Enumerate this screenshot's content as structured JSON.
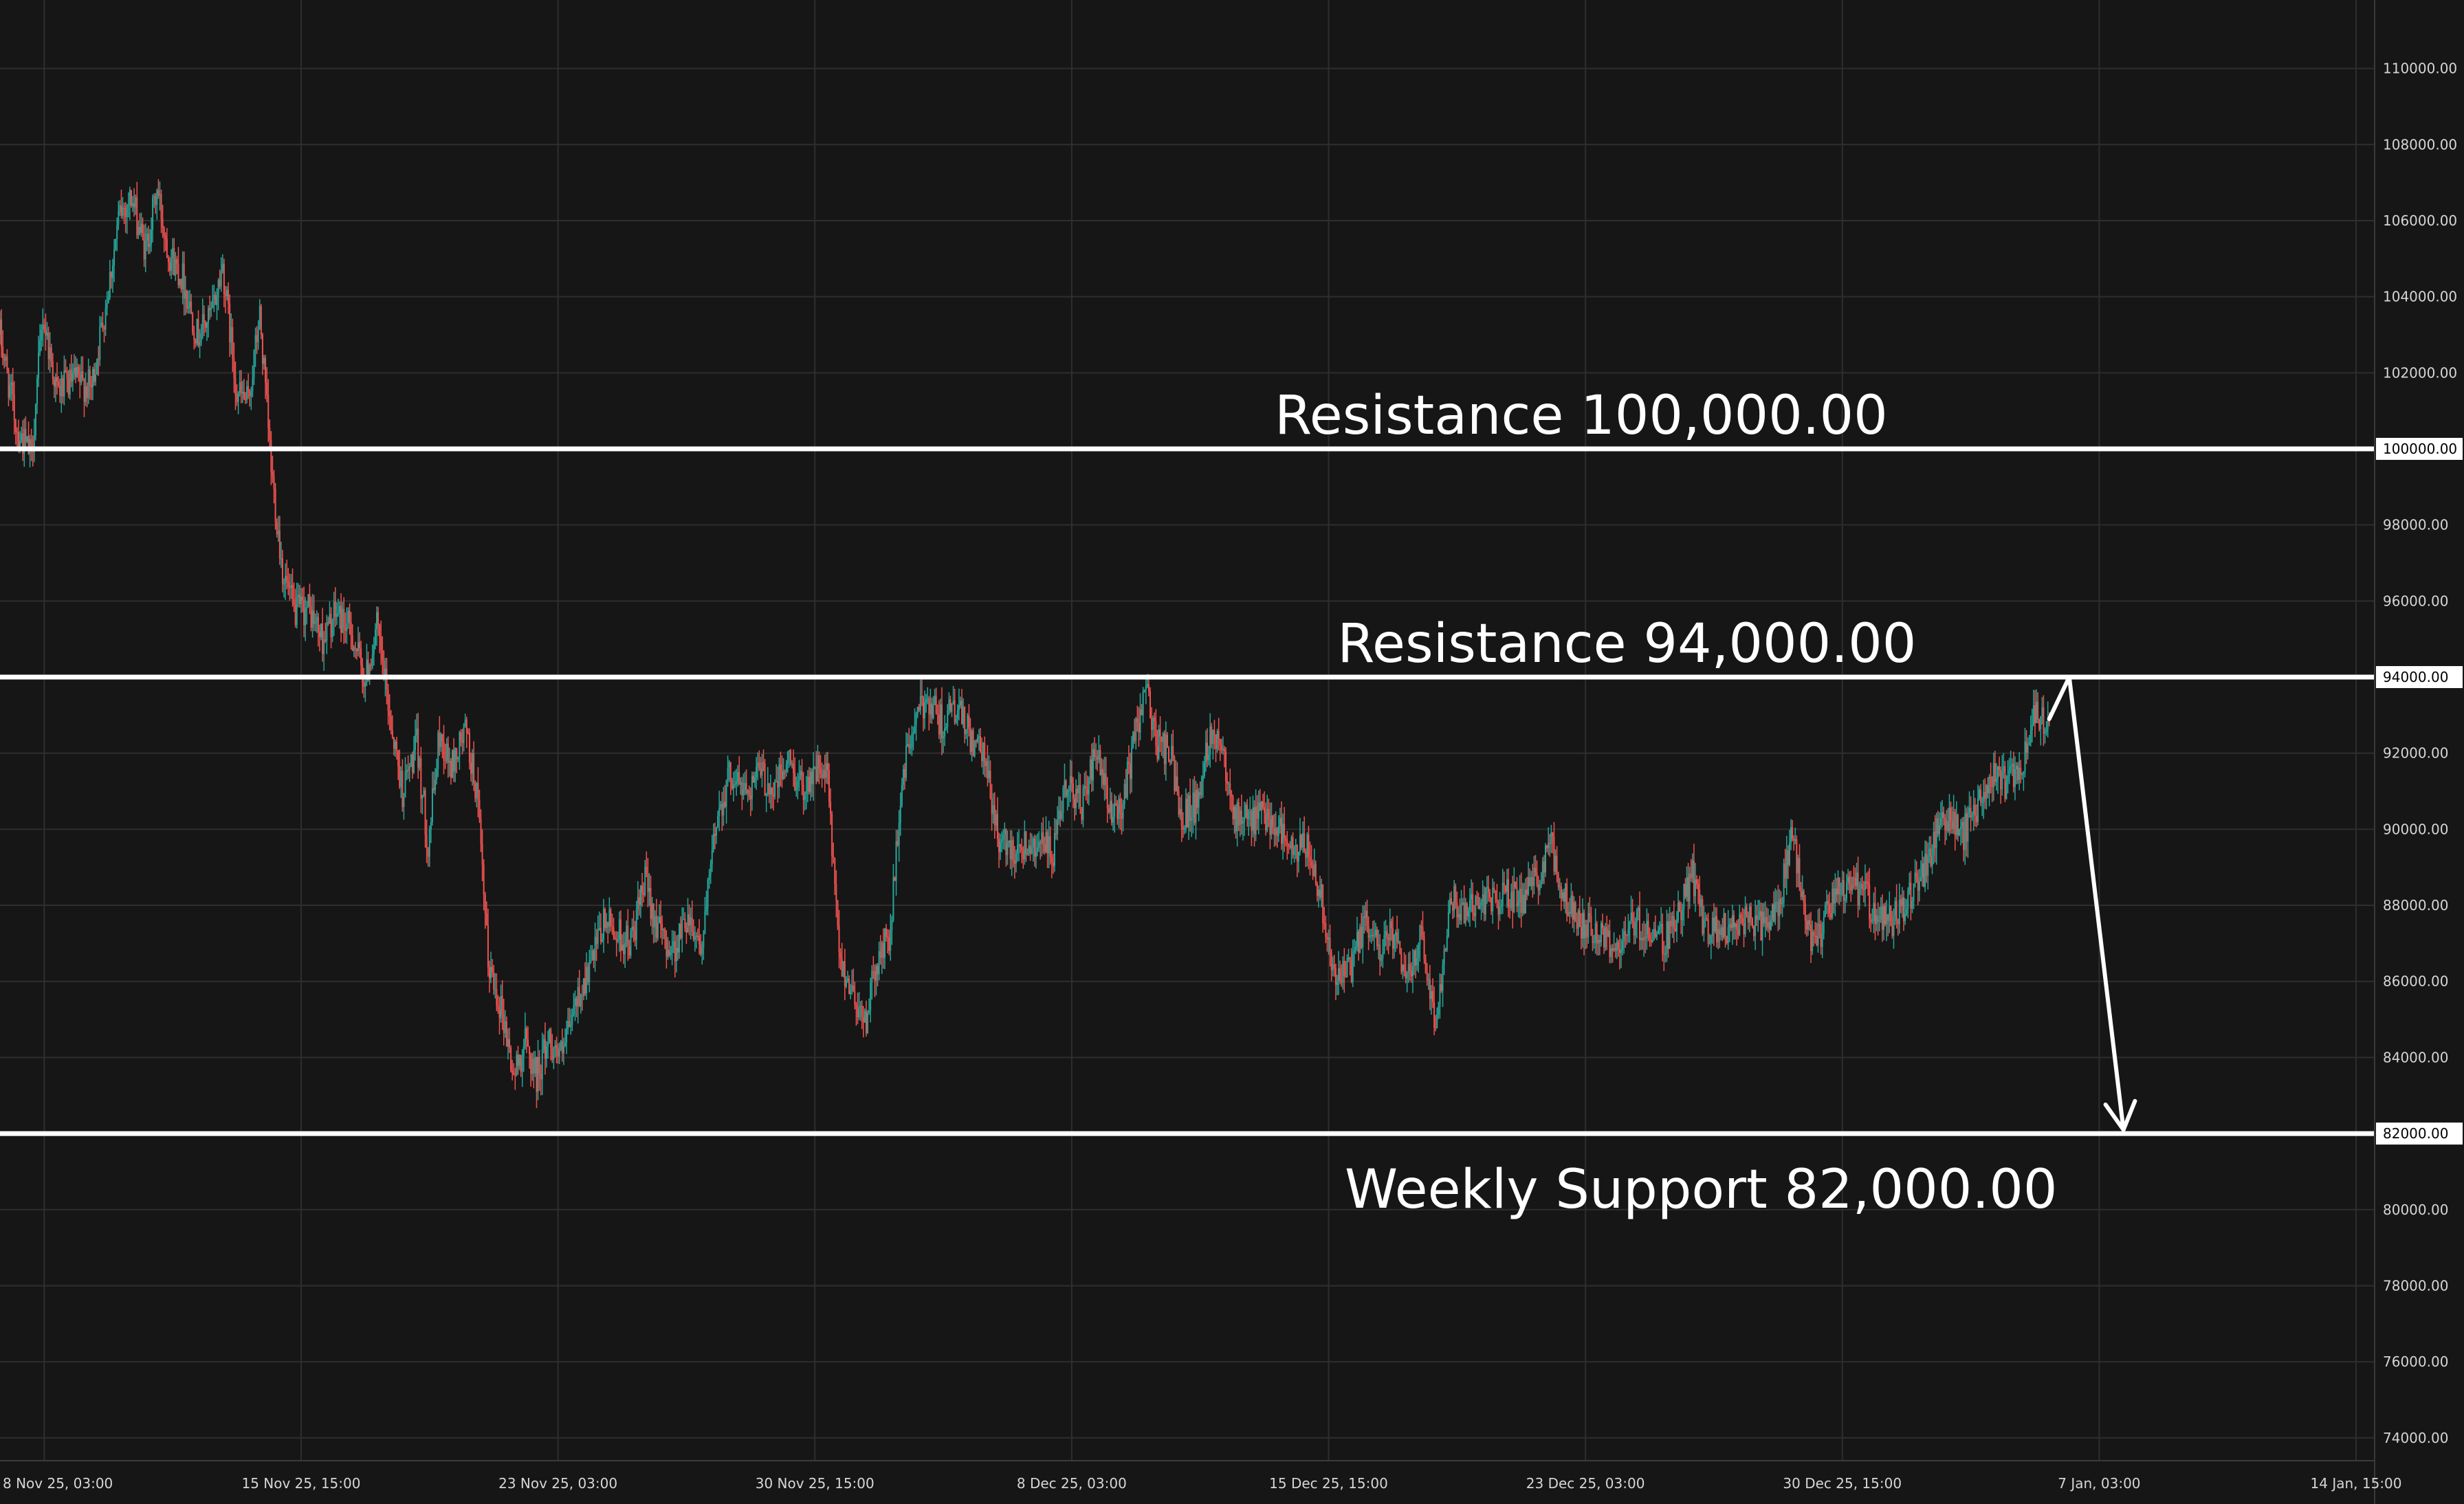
{
  "chart_data": {
    "type": "candlestick",
    "instrument": "",
    "colors": {
      "background": "#161616",
      "grid": "#2e2e2e",
      "up": "#26a69a",
      "down": "#ef5350",
      "level_line": "#ffffff",
      "arrow": "#ffffff",
      "axis_text": "#d6d6d6"
    },
    "grid": true,
    "y_axis": {
      "position": "right",
      "range": [
        73400,
        111800
      ],
      "ticks": [
        "110000.00",
        "108000.00",
        "106000.00",
        "104000.00",
        "102000.00",
        "100000.00",
        "98000.00",
        "96000.00",
        "94000.00",
        "92000.00",
        "90000.00",
        "88000.00",
        "86000.00",
        "84000.00",
        "82000.00",
        "80000.00",
        "78000.00",
        "76000.00",
        "74000.00"
      ],
      "tick_values": [
        110000,
        108000,
        106000,
        104000,
        102000,
        100000,
        98000,
        96000,
        94000,
        92000,
        90000,
        88000,
        86000,
        84000,
        82000,
        80000,
        78000,
        76000,
        74000
      ]
    },
    "x_axis": {
      "ticks": [
        {
          "label": "8 Nov 25, 03:00",
          "t": "2025-11-08 03:00"
        },
        {
          "label": "15 Nov 25, 15:00",
          "t": "2025-11-15 15:00"
        },
        {
          "label": "23 Nov 25, 03:00",
          "t": "2025-11-23 03:00"
        },
        {
          "label": "30 Nov 25, 15:00",
          "t": "2025-11-30 15:00"
        },
        {
          "label": "8 Dec 25, 03:00",
          "t": "2025-12-08 03:00"
        },
        {
          "label": "15 Dec 25, 15:00",
          "t": "2025-12-15 15:00"
        },
        {
          "label": "23 Dec 25, 03:00",
          "t": "2025-12-23 03:00"
        },
        {
          "label": "30 Dec 25, 15:00",
          "t": "2025-12-30 15:00"
        },
        {
          "label": "7 Jan, 03:00",
          "t": "2026-01-07 03:00"
        },
        {
          "label": "14 Jan, 15:00",
          "t": "2026-01-14 15:00"
        }
      ],
      "range": [
        "2025-11-06 20:00",
        "2026-01-15 04:00"
      ]
    },
    "price_path": [
      [
        "2025-11-06 20:00",
        103000
      ],
      [
        "2025-11-07 08:00",
        100500
      ],
      [
        "2025-11-07 18:00",
        99800
      ],
      [
        "2025-11-08 02:00",
        103500
      ],
      [
        "2025-11-08 12:00",
        101500
      ],
      [
        "2025-11-09 00:00",
        101800
      ],
      [
        "2025-11-09 12:00",
        101600
      ],
      [
        "2025-11-09 22:00",
        103800
      ],
      [
        "2025-11-10 08:00",
        106200
      ],
      [
        "2025-11-10 16:00",
        106600
      ],
      [
        "2025-11-11 02:00",
        105200
      ],
      [
        "2025-11-11 10:00",
        106800
      ],
      [
        "2025-11-11 18:00",
        105200
      ],
      [
        "2025-11-12 04:00",
        104500
      ],
      [
        "2025-11-12 14:00",
        103000
      ],
      [
        "2025-11-13 00:00",
        103500
      ],
      [
        "2025-11-13 08:00",
        104800
      ],
      [
        "2025-11-13 18:00",
        101500
      ],
      [
        "2025-11-14 02:00",
        101200
      ],
      [
        "2025-11-14 10:00",
        103500
      ],
      [
        "2025-11-14 18:00",
        99500
      ],
      [
        "2025-11-15 02:00",
        96800
      ],
      [
        "2025-11-15 10:00",
        95700
      ],
      [
        "2025-11-15 20:00",
        95800
      ],
      [
        "2025-11-16 06:00",
        95000
      ],
      [
        "2025-11-16 16:00",
        95700
      ],
      [
        "2025-11-17 02:00",
        95200
      ],
      [
        "2025-11-17 12:00",
        93900
      ],
      [
        "2025-11-17 20:00",
        95300
      ],
      [
        "2025-11-18 06:00",
        92800
      ],
      [
        "2025-11-18 14:00",
        91000
      ],
      [
        "2025-11-19 00:00",
        92200
      ],
      [
        "2025-11-19 08:00",
        89600
      ],
      [
        "2025-11-19 16:00",
        92500
      ],
      [
        "2025-11-20 00:00",
        91600
      ],
      [
        "2025-11-20 10:00",
        92600
      ],
      [
        "2025-11-20 18:00",
        91000
      ],
      [
        "2025-11-21 02:00",
        86500
      ],
      [
        "2025-11-21 12:00",
        85200
      ],
      [
        "2025-11-21 20:00",
        83500
      ],
      [
        "2025-11-22 04:00",
        84400
      ],
      [
        "2025-11-22 12:00",
        83500
      ],
      [
        "2025-11-22 20:00",
        84500
      ],
      [
        "2025-11-23 06:00",
        84000
      ],
      [
        "2025-11-23 16:00",
        85500
      ],
      [
        "2025-11-24 02:00",
        86400
      ],
      [
        "2025-11-24 12:00",
        87600
      ],
      [
        "2025-11-24 22:00",
        87200
      ],
      [
        "2025-11-25 06:00",
        87000
      ],
      [
        "2025-11-25 16:00",
        88600
      ],
      [
        "2025-11-26 02:00",
        87300
      ],
      [
        "2025-11-26 12:00",
        86800
      ],
      [
        "2025-11-26 22:00",
        87800
      ],
      [
        "2025-11-27 08:00",
        86900
      ],
      [
        "2025-11-27 18:00",
        90300
      ],
      [
        "2025-11-28 04:00",
        91500
      ],
      [
        "2025-11-28 14:00",
        91000
      ],
      [
        "2025-11-29 00:00",
        91500
      ],
      [
        "2025-11-29 10:00",
        91000
      ],
      [
        "2025-11-29 20:00",
        91800
      ],
      [
        "2025-11-30 06:00",
        91100
      ],
      [
        "2025-11-30 16:00",
        91600
      ],
      [
        "2025-12-01 00:00",
        91300
      ],
      [
        "2025-12-01 08:00",
        86600
      ],
      [
        "2025-12-01 18:00",
        85700
      ],
      [
        "2025-12-02 02:00",
        84900
      ],
      [
        "2025-12-02 10:00",
        86400
      ],
      [
        "2025-12-02 20:00",
        87300
      ],
      [
        "2025-12-03 04:00",
        91300
      ],
      [
        "2025-12-03 12:00",
        92700
      ],
      [
        "2025-12-03 22:00",
        93500
      ],
      [
        "2025-12-04 08:00",
        92800
      ],
      [
        "2025-12-04 18:00",
        93200
      ],
      [
        "2025-12-05 04:00",
        92400
      ],
      [
        "2025-12-05 14:00",
        91800
      ],
      [
        "2025-12-06 00:00",
        89700
      ],
      [
        "2025-12-06 08:00",
        89500
      ],
      [
        "2025-12-06 18:00",
        89600
      ],
      [
        "2025-12-07 04:00",
        89700
      ],
      [
        "2025-12-07 14:00",
        89300
      ],
      [
        "2025-12-08 00:00",
        91300
      ],
      [
        "2025-12-08 10:00",
        90600
      ],
      [
        "2025-12-08 20:00",
        92000
      ],
      [
        "2025-12-09 06:00",
        90400
      ],
      [
        "2025-12-09 14:00",
        90600
      ],
      [
        "2025-12-10 00:00",
        92500
      ],
      [
        "2025-12-10 06:00",
        93900
      ],
      [
        "2025-12-10 14:00",
        92300
      ],
      [
        "2025-12-11 00:00",
        92000
      ],
      [
        "2025-12-11 08:00",
        90400
      ],
      [
        "2025-12-11 18:00",
        90600
      ],
      [
        "2025-12-12 04:00",
        92600
      ],
      [
        "2025-12-12 12:00",
        92300
      ],
      [
        "2025-12-12 22:00",
        90300
      ],
      [
        "2025-12-13 08:00",
        90200
      ],
      [
        "2025-12-13 18:00",
        90400
      ],
      [
        "2025-12-14 04:00",
        90100
      ],
      [
        "2025-12-14 14:00",
        89300
      ],
      [
        "2025-12-15 00:00",
        89600
      ],
      [
        "2025-12-15 10:00",
        88200
      ],
      [
        "2025-12-15 20:00",
        86000
      ],
      [
        "2025-12-16 06:00",
        86300
      ],
      [
        "2025-12-16 16:00",
        87500
      ],
      [
        "2025-12-17 02:00",
        86900
      ],
      [
        "2025-12-17 12:00",
        87200
      ],
      [
        "2025-12-17 22:00",
        86000
      ],
      [
        "2025-12-18 08:00",
        87400
      ],
      [
        "2025-12-18 18:00",
        84800
      ],
      [
        "2025-12-19 04:00",
        88300
      ],
      [
        "2025-12-19 14:00",
        87800
      ],
      [
        "2025-12-20 00:00",
        88200
      ],
      [
        "2025-12-20 10:00",
        88100
      ],
      [
        "2025-12-20 20:00",
        88300
      ],
      [
        "2025-12-21 06:00",
        88100
      ],
      [
        "2025-12-21 16:00",
        88600
      ],
      [
        "2025-12-22 02:00",
        89700
      ],
      [
        "2025-12-22 12:00",
        88200
      ],
      [
        "2025-12-22 22:00",
        87600
      ],
      [
        "2025-12-23 08:00",
        87400
      ],
      [
        "2025-12-23 18:00",
        87100
      ],
      [
        "2025-12-24 04:00",
        86900
      ],
      [
        "2025-12-24 14:00",
        87600
      ],
      [
        "2025-12-25 00:00",
        87300
      ],
      [
        "2025-12-25 10:00",
        87100
      ],
      [
        "2025-12-25 20:00",
        87700
      ],
      [
        "2025-12-26 06:00",
        88800
      ],
      [
        "2025-12-26 16:00",
        87200
      ],
      [
        "2025-12-27 02:00",
        87400
      ],
      [
        "2025-12-27 12:00",
        87500
      ],
      [
        "2025-12-27 22:00",
        87600
      ],
      [
        "2025-12-28 08:00",
        87500
      ],
      [
        "2025-12-28 18:00",
        87900
      ],
      [
        "2025-12-29 04:00",
        89900
      ],
      [
        "2025-12-29 14:00",
        87200
      ],
      [
        "2025-12-30 00:00",
        87300
      ],
      [
        "2025-12-30 10:00",
        88300
      ],
      [
        "2025-12-30 20:00",
        88500
      ],
      [
        "2025-12-31 06:00",
        88400
      ],
      [
        "2025-12-31 16:00",
        87500
      ],
      [
        "2026-01-01 02:00",
        87600
      ],
      [
        "2026-01-01 12:00",
        88100
      ],
      [
        "2026-01-01 22:00",
        88700
      ],
      [
        "2026-01-02 08:00",
        89800
      ],
      [
        "2026-01-02 18:00",
        90300
      ],
      [
        "2026-01-03 04:00",
        89900
      ],
      [
        "2026-01-03 14:00",
        90700
      ],
      [
        "2026-01-04 00:00",
        91300
      ],
      [
        "2026-01-04 10:00",
        91200
      ],
      [
        "2026-01-04 20:00",
        91600
      ],
      [
        "2026-01-05 06:00",
        93000
      ],
      [
        "2026-01-05 16:00",
        92900
      ]
    ],
    "levels": [
      {
        "price": 100000,
        "label": "Resistance 100,000.00",
        "tag": "100000.00",
        "label_side": "above",
        "label_anchor": "2025-12-23 00:00"
      },
      {
        "price": 94000,
        "label": "Resistance 94,000.00",
        "tag": "94000.00",
        "label_side": "above",
        "label_anchor": "2025-12-24 08:00"
      },
      {
        "price": 82000,
        "label": "Weekly Support 82,000.00",
        "tag": "82000.00",
        "label_side": "below",
        "label_anchor": "2025-12-26 12:00"
      }
    ],
    "annotations": [
      {
        "type": "projection-arrow",
        "points": [
          [
            "2026-01-05 16:00",
            92900
          ],
          [
            "2026-01-06 06:00",
            94000
          ],
          [
            "2026-01-07 20:00",
            82100
          ]
        ]
      }
    ]
  }
}
